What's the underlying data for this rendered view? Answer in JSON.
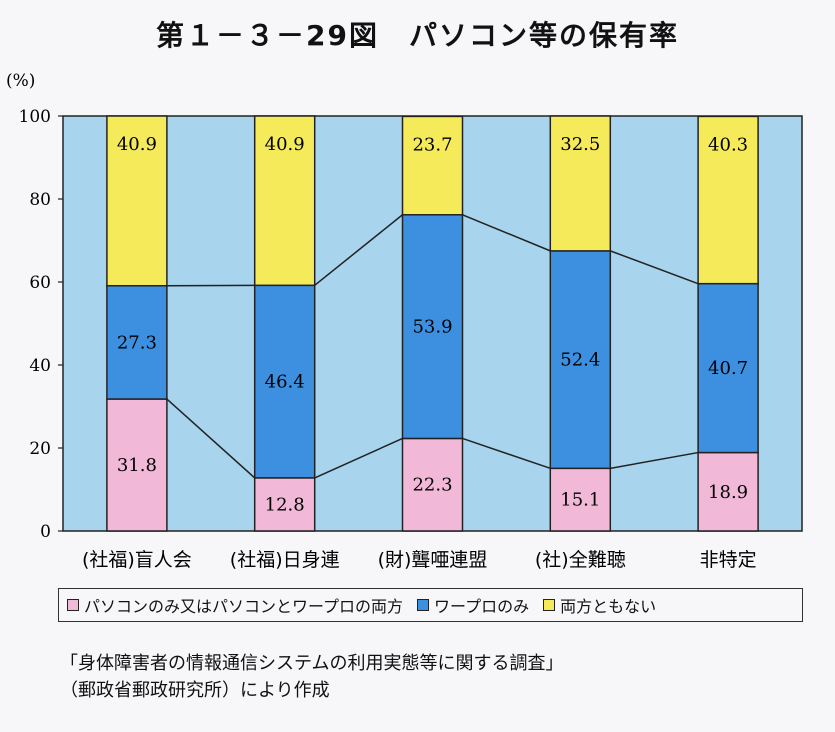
{
  "title": "第１－３－29図　パソコン等の保有率",
  "chart_data": {
    "type": "bar",
    "stacked": true,
    "ylabel": "(%)",
    "ylim": [
      0,
      100
    ],
    "yticks": [
      0,
      20,
      40,
      60,
      80,
      100
    ],
    "categories": [
      "(社福)盲人会",
      "(社福)日身連",
      "(財)聾唖連盟",
      "(社)全難聴",
      "非特定"
    ],
    "series": [
      {
        "name": "パソコンのみ又はパソコンとワープロの両方",
        "color": "#f2b8d8",
        "values": [
          31.8,
          12.8,
          22.3,
          15.1,
          18.9
        ]
      },
      {
        "name": "ワープロのみ",
        "color": "#3d8fe0",
        "values": [
          27.3,
          46.4,
          53.9,
          52.4,
          40.7
        ]
      },
      {
        "name": "両方ともない",
        "color": "#f5eb5a",
        "values": [
          40.9,
          40.9,
          23.7,
          32.5,
          40.3
        ]
      }
    ],
    "plot_background": "#a8d4ee",
    "legend_position": "bottom"
  },
  "source": {
    "line1": "「身体障害者の情報通信システムの利用実態等に関する調査」",
    "line2": "（郵政省郵政研究所）により作成"
  }
}
